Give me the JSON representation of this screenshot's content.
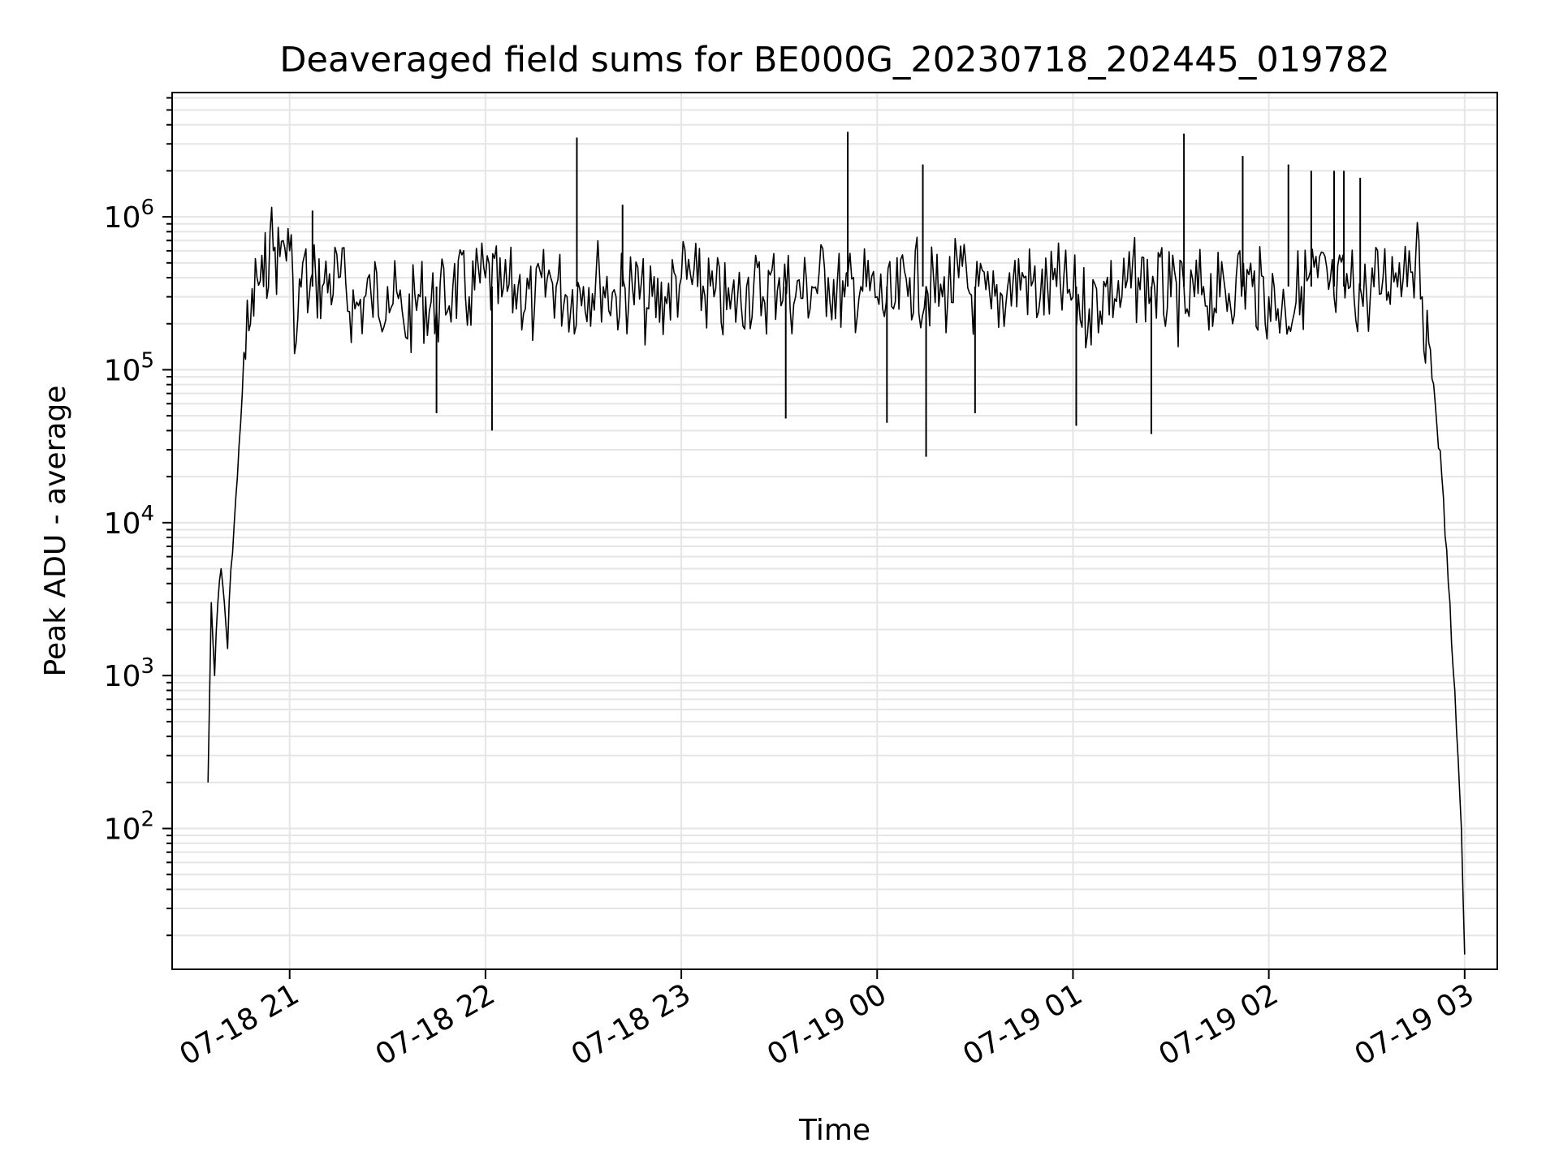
{
  "chart_data": {
    "type": "line",
    "title": "Deaveraged field sums for BE000G_20230718_202445_019782",
    "xlabel": "Time",
    "ylabel": "Peak ADU - average",
    "yscale": "log",
    "ylim": [
      12,
      6500000
    ],
    "xlim": [
      "07-18 20:24",
      "07-19 03:10"
    ],
    "grid": true,
    "legend": "none",
    "line_color": "#000000",
    "grid_color": "#e5e5e5",
    "x_ticks": [
      {
        "value": "07-18 21:00",
        "label": "07-18 21"
      },
      {
        "value": "07-18 22:00",
        "label": "07-18 22"
      },
      {
        "value": "07-18 23:00",
        "label": "07-18 23"
      },
      {
        "value": "07-19 00:00",
        "label": "07-19 00"
      },
      {
        "value": "07-19 01:00",
        "label": "07-19 01"
      },
      {
        "value": "07-19 02:00",
        "label": "07-19 02"
      },
      {
        "value": "07-19 03:00",
        "label": "07-19 03"
      }
    ],
    "y_ticks": [
      {
        "value": 100,
        "base": "10",
        "exp": "2"
      },
      {
        "value": 1000,
        "base": "10",
        "exp": "3"
      },
      {
        "value": 10000,
        "base": "10",
        "exp": "4"
      },
      {
        "value": 100000,
        "base": "10",
        "exp": "5"
      },
      {
        "value": 1000000,
        "base": "10",
        "exp": "6"
      }
    ],
    "series": [
      {
        "x": [
          "07-18 20:35",
          "07-18 20:36",
          "07-18 20:37",
          "07-18 20:38",
          "07-18 20:39",
          "07-18 20:40",
          "07-18 20:41",
          "07-18 20:42",
          "07-18 20:44",
          "07-18 20:45",
          "07-18 20:46",
          "07-18 20:48",
          "07-18 20:50",
          "07-18 20:52",
          "07-18 20:54",
          "07-18 20:55",
          "07-18 20:57",
          "07-18 20:58",
          "07-18 21:00",
          "07-18 21:01",
          "07-18 21:02",
          "07-18 21:04",
          "07-18 21:06",
          "07-18 21:08",
          "07-18 21:10",
          "07-18 21:15",
          "07-18 21:20",
          "07-18 21:25",
          "07-18 21:30",
          "07-18 21:35",
          "07-18 21:40",
          "07-18 21:45",
          "07-18 21:50",
          "07-18 21:55",
          "07-18 22:00",
          "07-18 22:05",
          "07-18 22:10",
          "07-18 22:15",
          "07-18 22:20",
          "07-18 22:25",
          "07-18 22:30",
          "07-18 22:35",
          "07-18 22:40",
          "07-18 22:45",
          "07-18 22:50",
          "07-18 22:55",
          "07-18 23:00",
          "07-18 23:05",
          "07-18 23:10",
          "07-18 23:15",
          "07-18 23:20",
          "07-18 23:25",
          "07-18 23:30",
          "07-18 23:35",
          "07-18 23:40",
          "07-18 23:45",
          "07-18 23:50",
          "07-18 23:55",
          "07-19 00:00",
          "07-19 00:05",
          "07-19 00:10",
          "07-19 00:15",
          "07-19 00:20",
          "07-19 00:25",
          "07-19 00:30",
          "07-19 00:35",
          "07-19 00:40",
          "07-19 00:45",
          "07-19 00:50",
          "07-19 00:55",
          "07-19 01:00",
          "07-19 01:05",
          "07-19 01:10",
          "07-19 01:15",
          "07-19 01:20",
          "07-19 01:25",
          "07-19 01:30",
          "07-19 01:35",
          "07-19 01:40",
          "07-19 01:45",
          "07-19 01:50",
          "07-19 01:55",
          "07-19 02:00",
          "07-19 02:05",
          "07-19 02:10",
          "07-19 02:15",
          "07-19 02:20",
          "07-19 02:25",
          "07-19 02:30",
          "07-19 02:35",
          "07-19 02:40",
          "07-19 02:43",
          "07-19 02:45",
          "07-19 02:47",
          "07-19 02:49",
          "07-19 02:51",
          "07-19 02:53",
          "07-19 02:55",
          "07-19 02:57",
          "07-19 02:59",
          "07-19 03:00"
        ],
        "y": [
          200,
          3000,
          1000,
          3000,
          5000,
          3000,
          1500,
          5000,
          20000,
          45000,
          130000,
          200000,
          400000,
          350000,
          800000,
          600000,
          550000,
          700000,
          600000,
          400000,
          150000,
          500000,
          300000,
          400000,
          350000,
          400000,
          250000,
          300000,
          350000,
          200000,
          300000,
          250000,
          350000,
          300000,
          400000,
          300000,
          350000,
          250000,
          400000,
          300000,
          350000,
          400000,
          300000,
          350000,
          250000,
          300000,
          400000,
          350000,
          300000,
          250000,
          350000,
          300000,
          400000,
          300000,
          350000,
          400000,
          300000,
          350000,
          300000,
          250000,
          400000,
          350000,
          300000,
          400000,
          300000,
          250000,
          350000,
          400000,
          300000,
          350000,
          300000,
          250000,
          350000,
          300000,
          400000,
          350000,
          300000,
          250000,
          350000,
          300000,
          400000,
          350000,
          300000,
          250000,
          350000,
          400000,
          300000,
          350000,
          300000,
          400000,
          500000,
          600000,
          550000,
          300000,
          150000,
          60000,
          20000,
          4000,
          800,
          100,
          15
        ]
      }
    ],
    "spikes": [
      {
        "x": "07-18 22:28",
        "y": 3300000
      },
      {
        "x": "07-18 23:51",
        "y": 3600000
      },
      {
        "x": "07-19 00:14",
        "y": 2200000
      },
      {
        "x": "07-19 01:34",
        "y": 3500000
      },
      {
        "x": "07-19 01:52",
        "y": 2500000
      },
      {
        "x": "07-19 02:06",
        "y": 2200000
      },
      {
        "x": "07-19 02:13",
        "y": 2000000
      },
      {
        "x": "07-19 02:20",
        "y": 2000000
      },
      {
        "x": "07-19 02:23",
        "y": 2000000
      },
      {
        "x": "07-19 02:28",
        "y": 1800000
      },
      {
        "x": "07-18 22:42",
        "y": 1200000
      },
      {
        "x": "07-18 21:07",
        "y": 1100000
      },
      {
        "x": "07-19 00:03",
        "y": 45000
      },
      {
        "x": "07-19 00:15",
        "y": 27000
      },
      {
        "x": "07-19 01:01",
        "y": 43000
      },
      {
        "x": "07-18 22:02",
        "y": 40000
      },
      {
        "x": "07-19 01:24",
        "y": 38000
      },
      {
        "x": "07-18 21:45",
        "y": 52000
      },
      {
        "x": "07-19 00:30",
        "y": 52000
      },
      {
        "x": "07-18 23:32",
        "y": 48000
      }
    ]
  }
}
